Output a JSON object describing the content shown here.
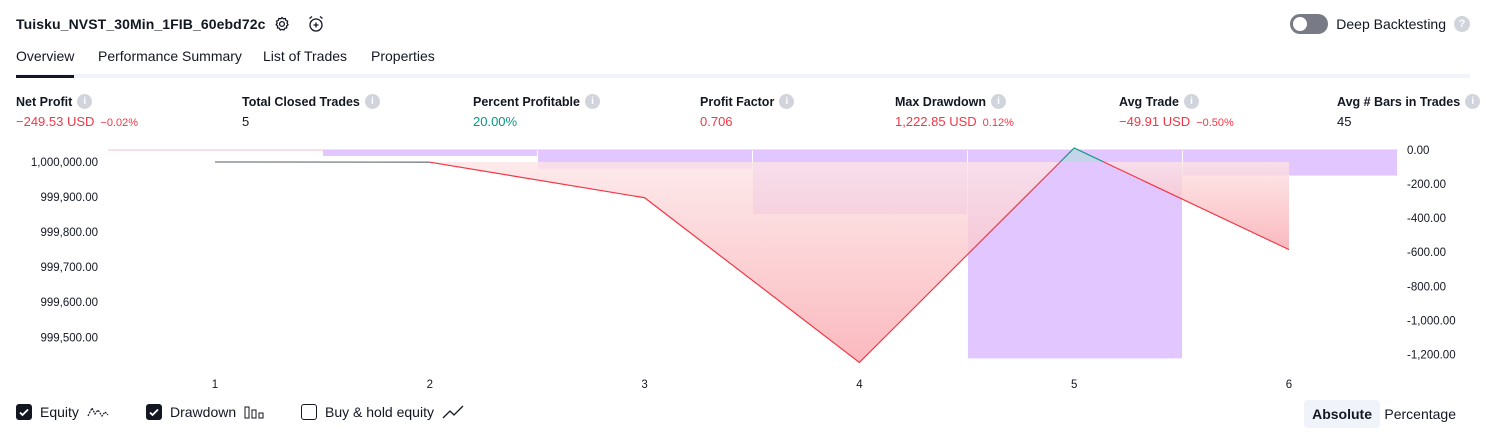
{
  "header": {
    "title": "Tuisku_NVST_30Min_1FIB_60ebd72c",
    "deep_backtesting_label": "Deep Backtesting",
    "help_glyph": "?"
  },
  "tabs": [
    {
      "label": "Overview",
      "active": true
    },
    {
      "label": "Performance Summary",
      "active": false
    },
    {
      "label": "List of Trades",
      "active": false
    },
    {
      "label": "Properties",
      "active": false
    }
  ],
  "metrics": [
    {
      "label": "Net Profit",
      "value": "−249.53 USD",
      "pct": "−0.02%",
      "color": "red"
    },
    {
      "label": "Total Closed Trades",
      "value": "5",
      "pct": "",
      "color": "dark"
    },
    {
      "label": "Percent Profitable",
      "value": "20.00%",
      "pct": "",
      "color": "green"
    },
    {
      "label": "Profit Factor",
      "value": "0.706",
      "pct": "",
      "color": "red"
    },
    {
      "label": "Max Drawdown",
      "value": "1,222.85 USD",
      "pct": "0.12%",
      "color": "red"
    },
    {
      "label": "Avg Trade",
      "value": "−49.91 USD",
      "pct": "−0.50%",
      "color": "red"
    },
    {
      "label": "Avg # Bars in Trades",
      "value": "45",
      "pct": "",
      "color": "dark"
    }
  ],
  "chart_data": {
    "type": "line",
    "x": [
      1,
      2,
      3,
      4,
      5,
      6
    ],
    "x_tick_labels": [
      "1",
      "2",
      "3",
      "4",
      "5",
      "6"
    ],
    "series": [
      {
        "name": "Equity",
        "axis": "left",
        "values": [
          1000000.0,
          999999.5,
          999898.0,
          999428.0,
          1000040.0,
          999750.0
        ]
      },
      {
        "name": "Drawdown",
        "axis": "right",
        "type": "bar",
        "values": [
          0,
          -35,
          -110,
          -375,
          -1222.85,
          -150
        ]
      }
    ],
    "left_axis": {
      "ticks": [
        "1,000,000.00",
        "999,900.00",
        "999,800.00",
        "999,700.00",
        "999,600.00",
        "999,500.00"
      ],
      "tick_values": [
        1000000,
        999900,
        999800,
        999700,
        999600,
        999500
      ]
    },
    "right_axis": {
      "ticks": [
        "0.00",
        "-200.00",
        "-400.00",
        "-600.00",
        "-800.00",
        "-1,000.00",
        "-1,200.00"
      ],
      "tick_values": [
        0,
        -200,
        -400,
        -600,
        -800,
        -1000,
        -1200
      ]
    },
    "colors": {
      "equity_loss": "#f23645",
      "equity_gain": "#089981",
      "drawdown_bar": "#e0c3ff",
      "zero_line": "#f8bbd0"
    },
    "grid": false
  },
  "legend": [
    {
      "label": "Equity",
      "checked": true,
      "icon": "equity-wave-icon"
    },
    {
      "label": "Drawdown",
      "checked": true,
      "icon": "drawdown-bars-icon"
    },
    {
      "label": "Buy & hold equity",
      "checked": false,
      "icon": "buy-hold-line-icon"
    }
  ],
  "modes": [
    {
      "label": "Absolute",
      "active": true
    },
    {
      "label": "Percentage",
      "active": false
    }
  ]
}
